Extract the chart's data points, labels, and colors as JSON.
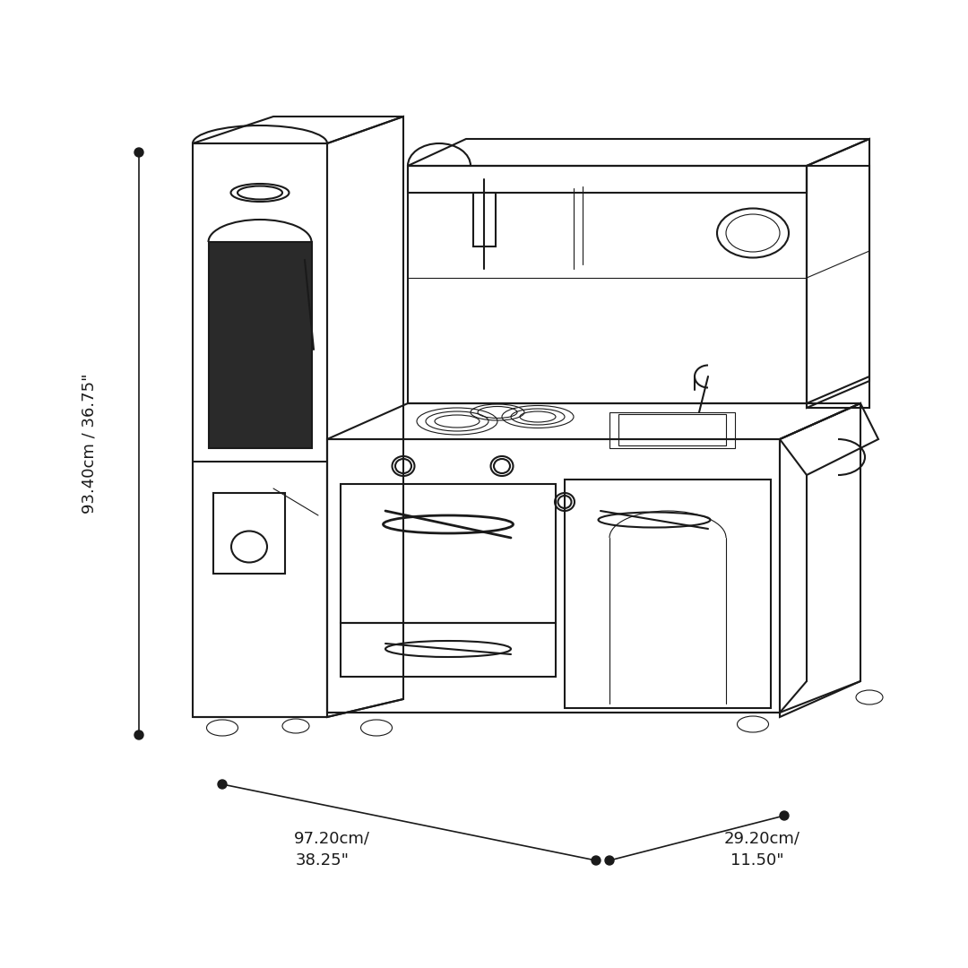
{
  "bg_color": "#ffffff",
  "line_color": "#1a1a1a",
  "dot_color": "#1a1a1a",
  "dim_color": "#1a1a1a",
  "fig_width": 10.8,
  "fig_height": 10.8,
  "height_label_line1": "93.40cm / 36.75\"",
  "width_label_line1": "97.20cm/",
  "width_label_line2": "38.25\"",
  "depth_label_line1": "29.20cm/",
  "depth_label_line2": "11.50\"",
  "font_size_dims": 13,
  "font_family": "sans-serif"
}
